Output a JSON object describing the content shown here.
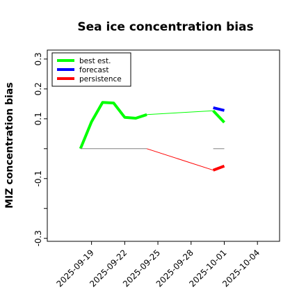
{
  "chart_data": {
    "type": "line",
    "title": "Sea ice concentration bias",
    "xlabel": "",
    "ylabel": "MIZ concentration bias",
    "ylim": [
      -0.31,
      0.33
    ],
    "yticks": [
      -0.3,
      -0.1,
      0.1,
      0.2,
      0.3
    ],
    "ytick_labels": [
      "-0.3",
      "-0.1",
      "0.1",
      "0.2",
      "0.3"
    ],
    "xlim": [
      "2025-09-15",
      "2025-10-06"
    ],
    "xticks": [
      "2025-09-19",
      "2025-09-22",
      "2025-09-25",
      "2025-09-28",
      "2025-10-01",
      "2025-10-04"
    ],
    "highlight_tick": "2025-09-25",
    "highlight_color": "#228b22",
    "legend": {
      "placement": "upper-left",
      "entries": [
        "best est.",
        "forecast",
        "persistence"
      ]
    },
    "series": [
      {
        "name": "best est.",
        "color": "#00ff00",
        "segments": [
          {
            "style": "thick",
            "points": [
              [
                "2025-09-18",
                0.0
              ],
              [
                "2025-09-19",
                0.09
              ],
              [
                "2025-09-20",
                0.155
              ],
              [
                "2025-09-21",
                0.153
              ],
              [
                "2025-09-22",
                0.105
              ],
              [
                "2025-09-23",
                0.102
              ],
              [
                "2025-09-24",
                0.114
              ]
            ]
          },
          {
            "style": "thin",
            "points": [
              [
                "2025-09-24",
                0.114
              ],
              [
                "2025-09-30",
                0.127
              ]
            ]
          },
          {
            "style": "thick",
            "points": [
              [
                "2025-09-30",
                0.127
              ],
              [
                "2025-10-01",
                0.088
              ]
            ]
          }
        ]
      },
      {
        "name": "forecast",
        "color": "#0000ff",
        "segments": [
          {
            "style": "thick",
            "points": [
              [
                "2025-09-30",
                0.137
              ],
              [
                "2025-10-01",
                0.128
              ]
            ]
          }
        ]
      },
      {
        "name": "persistence",
        "color": "#ff0000",
        "segments": [
          {
            "style": "thin",
            "points": [
              [
                "2025-09-24",
                0.0
              ],
              [
                "2025-09-30",
                -0.072
              ]
            ]
          },
          {
            "style": "thick",
            "points": [
              [
                "2025-09-30",
                -0.072
              ],
              [
                "2025-10-01",
                -0.058
              ]
            ]
          }
        ]
      },
      {
        "name": "",
        "color": "#808080",
        "segments": [
          {
            "style": "thin",
            "points": [
              [
                "2025-09-18",
                0.0
              ],
              [
                "2025-09-24",
                0.0
              ]
            ]
          },
          {
            "style": "thin",
            "points": [
              [
                "2025-09-30",
                0.0
              ],
              [
                "2025-10-01",
                0.0
              ]
            ]
          }
        ]
      }
    ]
  }
}
